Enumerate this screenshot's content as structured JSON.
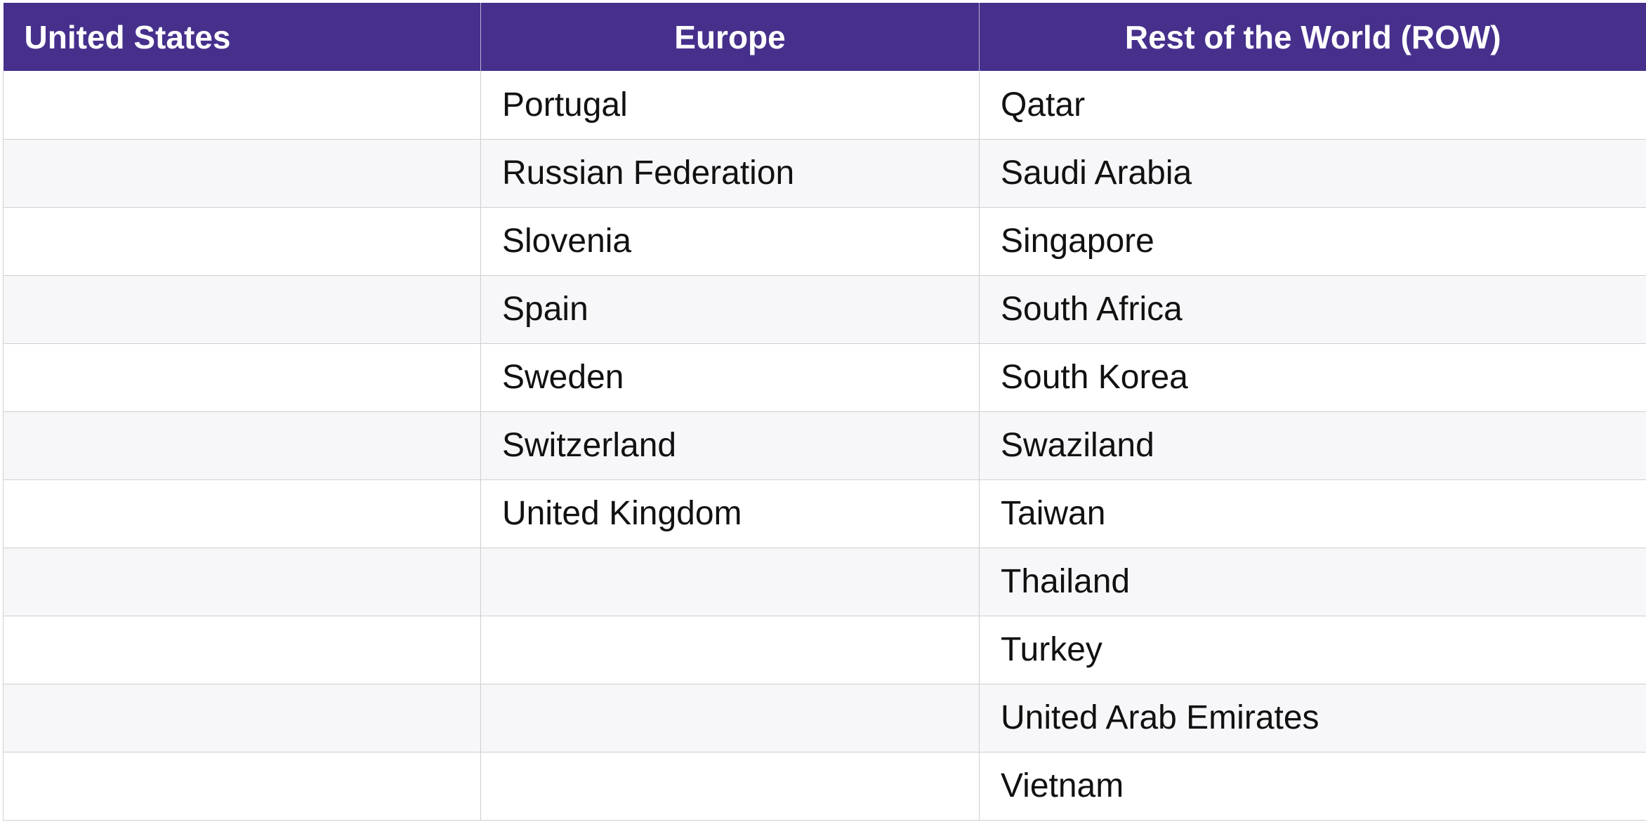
{
  "table": {
    "headers": [
      "United States",
      "Europe",
      "Rest of the World (ROW)"
    ],
    "rows": [
      [
        "",
        "Portugal",
        "Qatar"
      ],
      [
        "",
        "Russian Federation",
        "Saudi Arabia"
      ],
      [
        "",
        "Slovenia",
        "Singapore"
      ],
      [
        "",
        "Spain",
        "South Africa"
      ],
      [
        "",
        "Sweden",
        "South Korea"
      ],
      [
        "",
        "Switzerland",
        "Swaziland"
      ],
      [
        "",
        "United Kingdom",
        "Taiwan"
      ],
      [
        "",
        "",
        "Thailand"
      ],
      [
        "",
        "",
        "Turkey"
      ],
      [
        "",
        "",
        "United Arab Emirates"
      ],
      [
        "",
        "",
        "Vietnam"
      ]
    ]
  },
  "colors": {
    "header_background": "#46308c",
    "header_text": "#ffffff",
    "row_stripe": "#f7f7f9",
    "gridline": "#cfcfcf"
  }
}
